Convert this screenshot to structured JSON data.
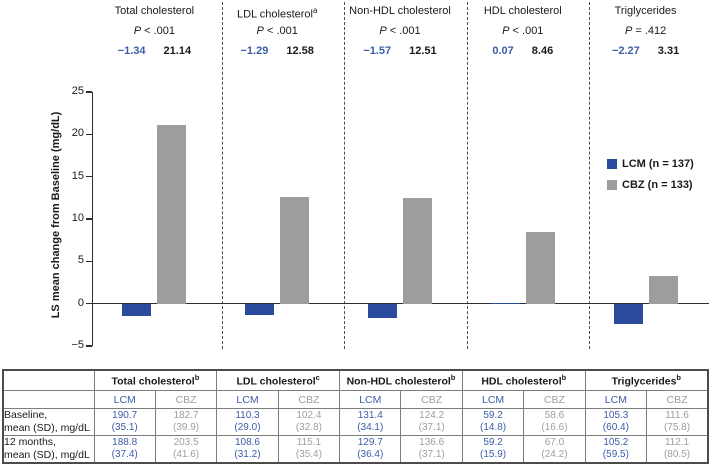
{
  "colors": {
    "lcm": "#2a4a9d",
    "cbz": "#9d9d9d",
    "lcm_text": "#3d5ca8",
    "cbz_text": "#9aa0a6",
    "axis": "#2e2e2e"
  },
  "annotations": [
    {
      "title": "Total cholesterol",
      "sup": "",
      "p": "P < .001",
      "lcm_value": "−1.34",
      "cbz_value": "21.14"
    },
    {
      "title": "LDL cholesterol",
      "sup": "a",
      "p": "P < .001",
      "lcm_value": "−1.29",
      "cbz_value": "12.58"
    },
    {
      "title": "Non-HDL cholesterol",
      "sup": "",
      "p": "P < .001",
      "lcm_value": "−1.57",
      "cbz_value": "12.51"
    },
    {
      "title": "HDL cholesterol",
      "sup": "",
      "p": "P < .001",
      "lcm_value": "0.07",
      "cbz_value": "8.46"
    },
    {
      "title": "Triglycerides",
      "sup": "",
      "p": "P = .412",
      "lcm_value": "−2.27",
      "cbz_value": "3.31"
    }
  ],
  "chart_data": {
    "type": "bar",
    "categories": [
      "Total cholesterol",
      "LDL cholesterol",
      "Non-HDL cholesterol",
      "HDL cholesterol",
      "Triglycerides"
    ],
    "series": [
      {
        "name": "LCM (n = 137)",
        "color": "#2a4a9d",
        "values": [
          -1.34,
          -1.29,
          -1.57,
          0.07,
          -2.27
        ]
      },
      {
        "name": "CBZ (n = 133)",
        "color": "#9d9d9d",
        "values": [
          21.14,
          12.58,
          12.51,
          8.46,
          3.31
        ]
      }
    ],
    "title": "",
    "xlabel": "",
    "ylabel": "LS mean change from Baseline (mg/dL)",
    "ylim": [
      -5,
      25
    ],
    "ytick_step": 5,
    "grid": "off",
    "legend_position": "right",
    "p_values": [
      "P < .001",
      "P < .001",
      "P < .001",
      "P < .001",
      "P = .412"
    ]
  },
  "legend": {
    "items": [
      {
        "label": "LCM (n = 137)",
        "color": "#2a4a9d"
      },
      {
        "label": "CBZ (n = 133)",
        "color": "#9d9d9d"
      }
    ]
  },
  "table": {
    "groups": [
      {
        "label": "Total cholesterol",
        "sup": "b"
      },
      {
        "label": "LDL cholesterol",
        "sup": "c"
      },
      {
        "label": "Non-HDL cholesterol",
        "sup": "b"
      },
      {
        "label": "HDL cholesterol",
        "sup": "b"
      },
      {
        "label": "Triglycerides",
        "sup": "b"
      }
    ],
    "subheaders": [
      "LCM",
      "CBZ"
    ],
    "rows": [
      {
        "label_line1": "Baseline,",
        "label_line2": "mean (SD), mg/dL",
        "cells": [
          {
            "value": "190.7",
            "sd": "(35.1)"
          },
          {
            "value": "182.7",
            "sd": "(39.9)"
          },
          {
            "value": "110.3",
            "sd": "(29.0)"
          },
          {
            "value": "102.4",
            "sd": "(32.8)"
          },
          {
            "value": "131.4",
            "sd": "(34.1)"
          },
          {
            "value": "124.2",
            "sd": "(37.1)"
          },
          {
            "value": "59.2",
            "sd": "(14.8)"
          },
          {
            "value": "58.6",
            "sd": "(16.6)"
          },
          {
            "value": "105.3",
            "sd": "(60.4)"
          },
          {
            "value": "111.6",
            "sd": "(75.8)"
          }
        ]
      },
      {
        "label_line1": "12 months,",
        "label_line2": "mean (SD), mg/dL",
        "cells": [
          {
            "value": "188.8",
            "sd": "(37.4)"
          },
          {
            "value": "203.5",
            "sd": "(41.6)"
          },
          {
            "value": "108.6",
            "sd": "(31.2)"
          },
          {
            "value": "115.1",
            "sd": "(35.4)"
          },
          {
            "value": "129.7",
            "sd": "(36.4)"
          },
          {
            "value": "136.6",
            "sd": "(37.1)"
          },
          {
            "value": "59.2",
            "sd": "(15.9)"
          },
          {
            "value": "67.0",
            "sd": "(24.2)"
          },
          {
            "value": "105.2",
            "sd": "(59.5)"
          },
          {
            "value": "112.1",
            "sd": "(80.5)"
          }
        ]
      }
    ]
  },
  "layout_dash_x": [
    221.5,
    344,
    466.5,
    589
  ]
}
